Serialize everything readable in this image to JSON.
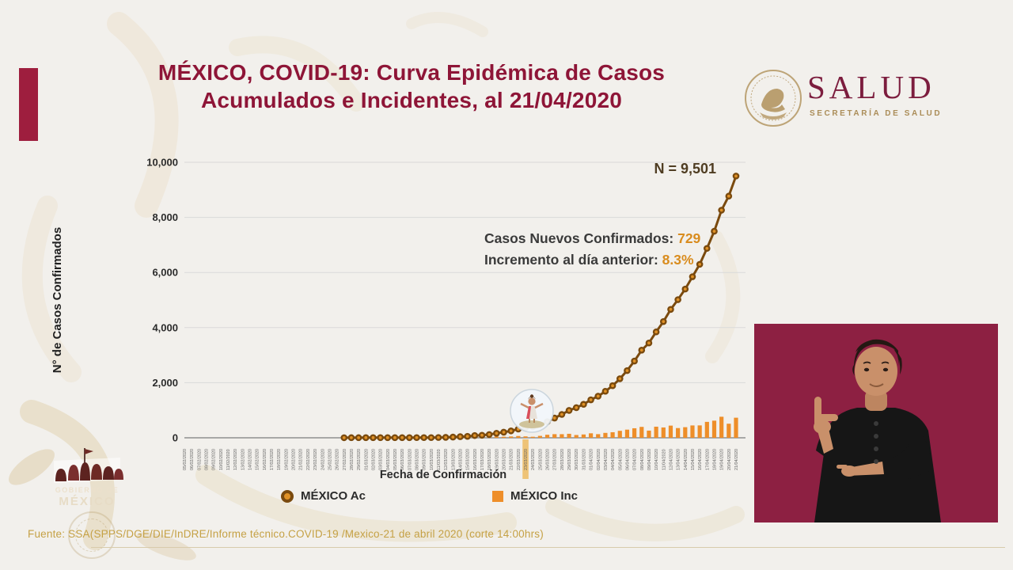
{
  "header": {
    "title_line1": "MÉXICO, COVID-19: Curva Epidémica de Casos",
    "title_line2": "Acumulados e Incidentes, al 21/04/2020",
    "title_color": "#8e1537"
  },
  "logo": {
    "wordmark": "SALUD",
    "subtitle": "SECRETARÍA DE SALUD"
  },
  "gob_logo": {
    "wordmark": "MÉXICO"
  },
  "annotations": {
    "n_total": "N = 9,501",
    "new_cases_label": "Casos Nuevos Confirmados:",
    "new_cases_value": "729",
    "increase_label": "Incremento al día anterior:",
    "increase_value": "8.3%"
  },
  "footer": {
    "source": "Fuente: SSA(SPPS/DGE/DIE/InDRE/Informe técnico.COVID-19 /Mexico-21 de abril 2020 (corte 14:00hrs)"
  },
  "sign_interpreter": {
    "present": true,
    "background": "#8d2042"
  },
  "colors": {
    "accent_maroon": "#9e1e3e",
    "title_maroon": "#8e1537",
    "salud_maroon": "#7c1d3e",
    "gold": "#ab8d58",
    "line_brown": "#7a4a0e",
    "marker_center": "#e09126",
    "bar_orange": "#ee8e29",
    "value_orange": "#d98c1e",
    "highlight_tan": "#eec377"
  },
  "chart_data": {
    "type": "line+bar",
    "title": "",
    "xlabel": "Fecha de Confirmación",
    "ylabel": "N° de Casos Confirmados",
    "ylim": [
      0,
      10000
    ],
    "ytick_values": [
      0,
      2000,
      4000,
      6000,
      8000,
      10000
    ],
    "yticks": [
      "0",
      "2,000",
      "4,000",
      "6,000",
      "8,000",
      "10,000"
    ],
    "grid": "horizontal",
    "legend_position": "bottom",
    "annotation": "N = 9,501",
    "highlight_date": "23/03/2020",
    "dates": [
      "05/02/2020",
      "06/02/2020",
      "07/02/2020",
      "08/02/2020",
      "09/02/2020",
      "10/02/2020",
      "11/02/2020",
      "12/02/2020",
      "13/02/2020",
      "14/02/2020",
      "15/02/2020",
      "16/02/2020",
      "17/02/2020",
      "18/02/2020",
      "19/02/2020",
      "20/02/2020",
      "21/02/2020",
      "22/02/2020",
      "23/02/2020",
      "24/02/2020",
      "25/02/2020",
      "26/02/2020",
      "27/02/2020",
      "28/02/2020",
      "29/02/2020",
      "01/03/2020",
      "02/03/2020",
      "03/03/2020",
      "04/03/2020",
      "05/03/2020",
      "06/03/2020",
      "07/03/2020",
      "08/03/2020",
      "09/03/2020",
      "10/03/2020",
      "11/03/2020",
      "12/03/2020",
      "13/03/2020",
      "14/03/2020",
      "15/03/2020",
      "16/03/2020",
      "17/03/2020",
      "18/03/2020",
      "19/03/2020",
      "20/03/2020",
      "21/03/2020",
      "22/03/2020",
      "23/03/2020",
      "24/03/2020",
      "25/03/2020",
      "26/03/2020",
      "27/03/2020",
      "28/03/2020",
      "29/03/2020",
      "30/03/2020",
      "31/03/2020",
      "01/04/2020",
      "02/04/2020",
      "03/04/2020",
      "04/04/2020",
      "05/04/2020",
      "06/04/2020",
      "07/04/2020",
      "08/04/2020",
      "09/04/2020",
      "10/04/2020",
      "11/04/2020",
      "12/04/2020",
      "13/04/2020",
      "14/04/2020",
      "15/04/2020",
      "16/04/2020",
      "17/04/2020",
      "18/04/2020",
      "19/04/2020",
      "20/04/2020",
      "21/04/2020"
    ],
    "series": [
      {
        "name": "MÉXICO Ac",
        "type": "line",
        "color": "#7a4a0e",
        "marker_fill": "#e09126",
        "start_date": "27/02/2020",
        "values": [
          3,
          4,
          4,
          5,
          5,
          5,
          5,
          5,
          6,
          6,
          7,
          7,
          7,
          11,
          15,
          26,
          41,
          53,
          82,
          93,
          118,
          164,
          203,
          251,
          316,
          367,
          405,
          475,
          585,
          717,
          848,
          993,
          1094,
          1215,
          1378,
          1510,
          1688,
          1890,
          2143,
          2439,
          2785,
          3181,
          3441,
          3844,
          4219,
          4661,
          5014,
          5399,
          5847,
          6297,
          6875,
          7497,
          8261,
          8772,
          9501
        ]
      },
      {
        "name": "MÉXICO Inc",
        "type": "bar",
        "color": "#ee8e29",
        "start_date": "27/02/2020",
        "values": [
          3,
          1,
          0,
          1,
          0,
          0,
          0,
          0,
          1,
          0,
          1,
          0,
          0,
          4,
          4,
          11,
          15,
          12,
          29,
          11,
          25,
          46,
          39,
          48,
          65,
          51,
          38,
          70,
          110,
          132,
          131,
          145,
          101,
          121,
          163,
          132,
          178,
          202,
          253,
          296,
          346,
          396,
          260,
          403,
          375,
          442,
          353,
          385,
          448,
          450,
          578,
          622,
          764,
          511,
          729
        ]
      }
    ]
  }
}
